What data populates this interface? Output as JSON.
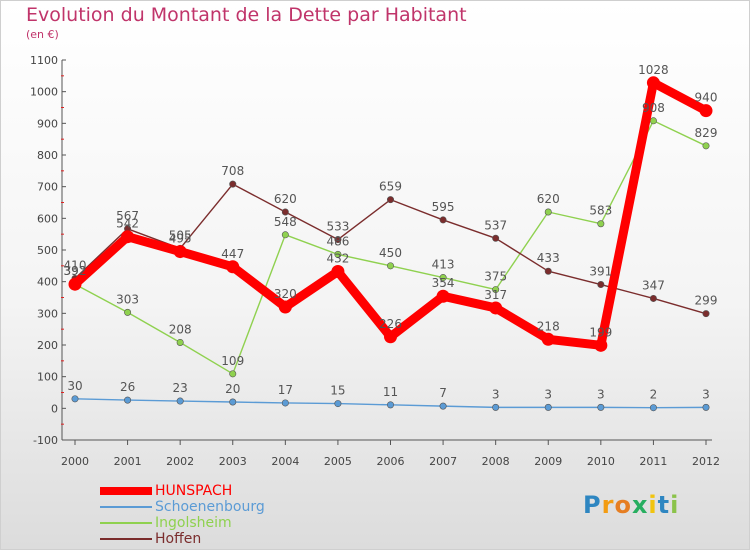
{
  "header": {
    "title": "Evolution du Montant de la Dette par Habitant",
    "subtitle": "(en €)"
  },
  "logo": {
    "text": "Proxiti",
    "letters": [
      {
        "ch": "P",
        "color": "#2e86c1"
      },
      {
        "ch": "r",
        "color": "#f39c12"
      },
      {
        "ch": "o",
        "color": "#e67e22"
      },
      {
        "ch": "x",
        "color": "#27ae60"
      },
      {
        "ch": "i",
        "color": "#f1c40f"
      },
      {
        "ch": "t",
        "color": "#2e86c1"
      },
      {
        "ch": "i",
        "color": "#8bc34a"
      }
    ]
  },
  "chart_data": {
    "type": "line",
    "title": "Evolution du Montant de la Dette par Habitant",
    "subtitle": "(en €)",
    "xlabel": "",
    "ylabel": "",
    "x": [
      "2000",
      "2001",
      "2002",
      "2003",
      "2004",
      "2005",
      "2006",
      "2007",
      "2008",
      "2009",
      "2010",
      "2011",
      "2012"
    ],
    "ylim": [
      -100,
      1100
    ],
    "yticks": [
      -100,
      0,
      100,
      200,
      300,
      400,
      500,
      600,
      700,
      800,
      900,
      1000,
      1100
    ],
    "grid": false,
    "legend_position": "bottom-left",
    "series": [
      {
        "name": "HUNSPACH",
        "color": "#ff0000",
        "weight": "thick",
        "values": [
          392,
          542,
          495,
          447,
          320,
          432,
          226,
          354,
          317,
          218,
          199,
          1028,
          940
        ],
        "labels": [
          "392",
          "542",
          "495",
          "447",
          "320",
          "432",
          "226",
          "354",
          "317",
          "218",
          "199",
          "1028",
          "940"
        ]
      },
      {
        "name": "Schoenenbourg",
        "color": "#5b9bd5",
        "weight": "thin",
        "values": [
          30,
          26,
          23,
          20,
          17,
          15,
          11,
          7,
          3,
          3,
          3,
          2,
          3
        ],
        "labels": [
          "30",
          "26",
          "23",
          "20",
          "17",
          "15",
          "11",
          "7",
          "3",
          "3",
          "3",
          "2",
          "3"
        ]
      },
      {
        "name": "Ingolsheim",
        "color": "#8fd14f",
        "weight": "thin",
        "values": [
          392,
          303,
          208,
          109,
          548,
          486,
          450,
          413,
          375,
          620,
          583,
          908,
          829
        ],
        "labels": [
          "392",
          "303",
          "208",
          "109",
          "548",
          "486",
          "450",
          "413",
          "375",
          "620",
          "583",
          "908",
          "829"
        ]
      },
      {
        "name": "Hoffen",
        "color": "#7b2d2d",
        "weight": "thin",
        "values": [
          410,
          567,
          505,
          708,
          620,
          533,
          659,
          595,
          537,
          433,
          391,
          347,
          299
        ],
        "labels": [
          "410",
          "567",
          "505",
          "708",
          "620",
          "533",
          "659",
          "595",
          "537",
          "433",
          "391",
          "347",
          "299"
        ]
      }
    ]
  }
}
